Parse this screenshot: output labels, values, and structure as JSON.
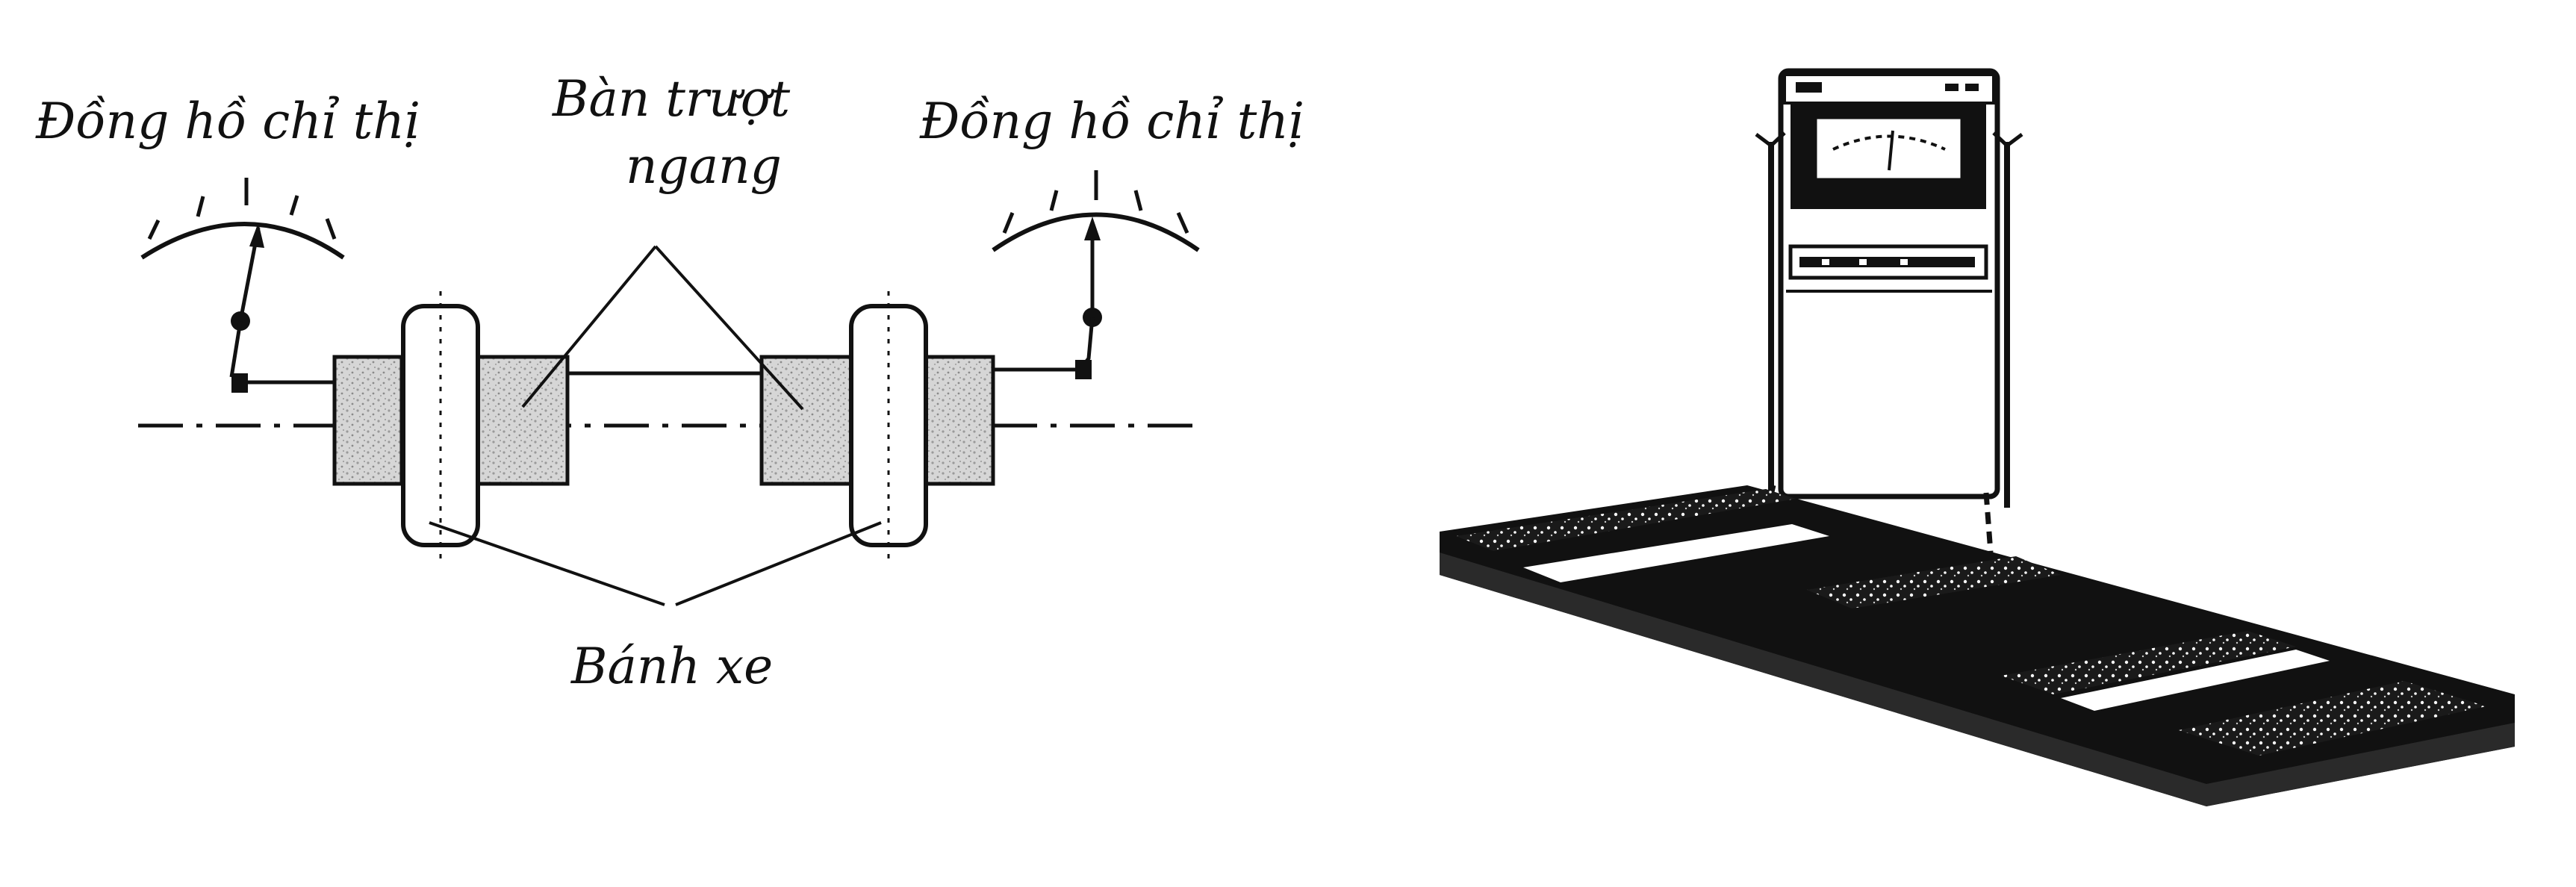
{
  "labels": {
    "left_gauge": "Đồng hồ chỉ thị",
    "right_gauge": "Đồng hồ chỉ thị",
    "slide_line1": "Bàn trượt",
    "slide_line2": "ngang",
    "wheel": "Bánh xe"
  },
  "colors": {
    "ink": "#111111",
    "block_fill": "#d6d6d6",
    "block_speckle": "#9a9a9a",
    "background": "#ffffff"
  },
  "icons": {
    "left_gauge": "dial-gauge-icon",
    "right_gauge": "dial-gauge-icon",
    "tester": "side-slip-tester-icon"
  }
}
